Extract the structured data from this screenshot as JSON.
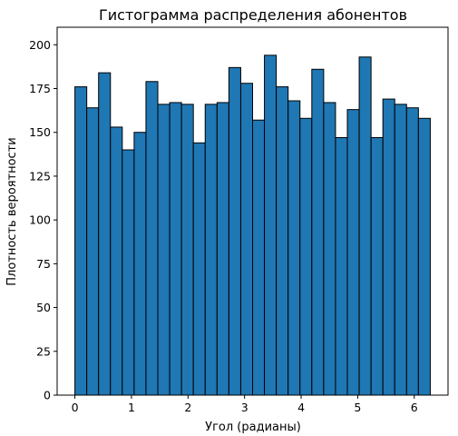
{
  "chart_data": {
    "type": "bar",
    "title": "Гистограмма распределения абонентов",
    "xlabel": "Угол (радианы)",
    "ylabel": "Плотность вероятности",
    "xlim": [
      -0.314,
      6.597
    ],
    "ylim": [
      0,
      210
    ],
    "x_ticks": [
      0,
      1,
      2,
      3,
      4,
      5,
      6
    ],
    "y_ticks": [
      0,
      25,
      50,
      75,
      100,
      125,
      150,
      175,
      200
    ],
    "bin_start": 0,
    "bin_end": 6.2832,
    "bins": 30,
    "values": [
      176,
      164,
      184,
      153,
      140,
      150,
      179,
      166,
      167,
      166,
      144,
      166,
      167,
      187,
      178,
      157,
      194,
      176,
      168,
      158,
      186,
      167,
      147,
      163,
      193,
      147,
      169,
      166,
      164,
      158
    ],
    "bar_color": "#1f77b4",
    "edge_color": "#000000",
    "grid": false,
    "legend": "none"
  }
}
